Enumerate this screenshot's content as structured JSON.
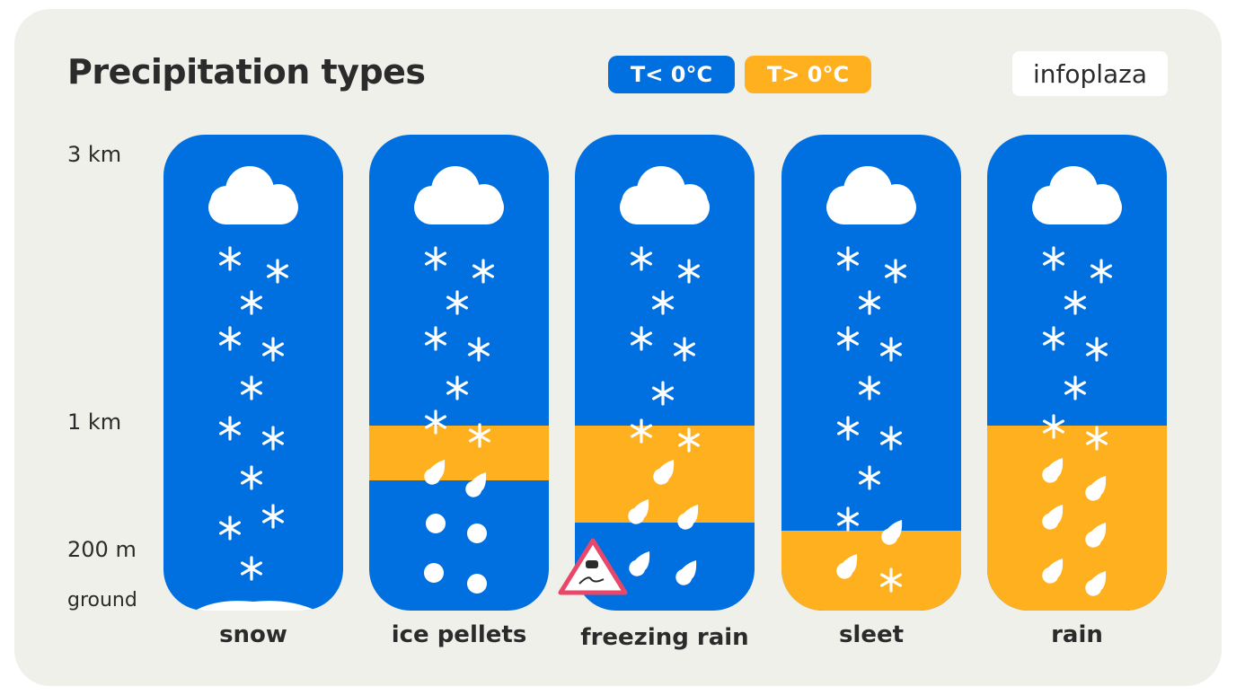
{
  "title": "Precipitation types",
  "legend": [
    {
      "label": "T< 0°C",
      "color": "#0070e0"
    },
    {
      "label": "T> 0°C",
      "color": "#ffb01f"
    }
  ],
  "logo": "infoplaza",
  "altitudes": [
    "3 km",
    "1 km",
    "200 m",
    "ground"
  ],
  "columns": [
    {
      "label": "snow"
    },
    {
      "label": "ice pellets"
    },
    {
      "label": "freezing rain",
      "icon": "slippery-road-warning-icon"
    },
    {
      "label": "sleet"
    },
    {
      "label": "rain"
    }
  ]
}
